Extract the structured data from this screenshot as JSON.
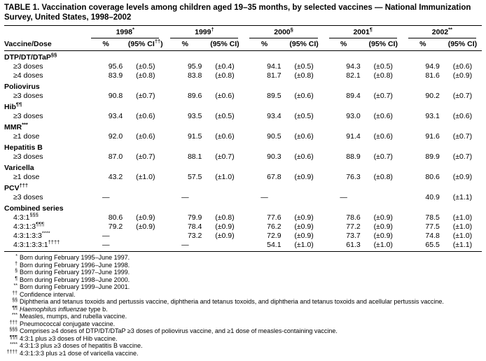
{
  "title": {
    "text": "TABLE 1. Vaccination coverage levels among children aged 19–35 months, by selected vaccines — National Immunization Survey, United States, 1998–2002"
  },
  "table": {
    "corner_label": "Vaccine/Dose",
    "years": [
      {
        "label": "1998",
        "marker": "*",
        "pct_label": "%",
        "ci_prefix": "(95% CI",
        "ci_marker": "††",
        "ci_suffix": ")"
      },
      {
        "label": "1999",
        "marker": "†",
        "pct_label": "%",
        "ci_prefix": "(95% CI",
        "ci_marker": "",
        "ci_suffix": ")"
      },
      {
        "label": "2000",
        "marker": "§",
        "pct_label": "%",
        "ci_prefix": "(95% CI",
        "ci_marker": "",
        "ci_suffix": ")"
      },
      {
        "label": "2001",
        "marker": "¶",
        "pct_label": "%",
        "ci_prefix": "(95% CI",
        "ci_marker": "",
        "ci_suffix": ")"
      },
      {
        "label": "2002",
        "marker": "**",
        "pct_label": "%",
        "ci_prefix": "(95% CI",
        "ci_marker": "",
        "ci_suffix": ")"
      }
    ],
    "sections": [
      {
        "name": "DTP/DT/DTaP",
        "marker": "§§",
        "rows": [
          {
            "label": "≥3 doses",
            "marker": "",
            "values": [
              {
                "pct": "95.6",
                "ci": "(±0.5)"
              },
              {
                "pct": "95.9",
                "ci": "(±0.4)"
              },
              {
                "pct": "94.1",
                "ci": "(±0.5)"
              },
              {
                "pct": "94.3",
                "ci": "(±0.5)"
              },
              {
                "pct": "94.9",
                "ci": "(±0.6)"
              }
            ]
          },
          {
            "label": "≥4 doses",
            "marker": "",
            "values": [
              {
                "pct": "83.9",
                "ci": "(±0.8)"
              },
              {
                "pct": "83.8",
                "ci": "(±0.8)"
              },
              {
                "pct": "81.7",
                "ci": "(±0.8)"
              },
              {
                "pct": "82.1",
                "ci": "(±0.8)"
              },
              {
                "pct": "81.6",
                "ci": "(±0.9)"
              }
            ]
          }
        ]
      },
      {
        "name": "Poliovirus",
        "marker": "",
        "rows": [
          {
            "label": "≥3 doses",
            "marker": "",
            "values": [
              {
                "pct": "90.8",
                "ci": "(±0.7)"
              },
              {
                "pct": "89.6",
                "ci": "(±0.6)"
              },
              {
                "pct": "89.5",
                "ci": "(±0.6)"
              },
              {
                "pct": "89.4",
                "ci": "(±0.7)"
              },
              {
                "pct": "90.2",
                "ci": "(±0.7)"
              }
            ]
          }
        ]
      },
      {
        "name": "Hib",
        "marker": "¶¶",
        "rows": [
          {
            "label": "≥3 doses",
            "marker": "",
            "values": [
              {
                "pct": "93.4",
                "ci": "(±0.6)"
              },
              {
                "pct": "93.5",
                "ci": "(±0.5)"
              },
              {
                "pct": "93.4",
                "ci": "(±0.5)"
              },
              {
                "pct": "93.0",
                "ci": "(±0.6)"
              },
              {
                "pct": "93.1",
                "ci": "(±0.6)"
              }
            ]
          }
        ]
      },
      {
        "name": "MMR",
        "marker": "***",
        "rows": [
          {
            "label": "≥1 dose",
            "marker": "",
            "values": [
              {
                "pct": "92.0",
                "ci": "(±0.6)"
              },
              {
                "pct": "91.5",
                "ci": "(±0.6)"
              },
              {
                "pct": "90.5",
                "ci": "(±0.6)"
              },
              {
                "pct": "91.4",
                "ci": "(±0.6)"
              },
              {
                "pct": "91.6",
                "ci": "(±0.7)"
              }
            ]
          }
        ]
      },
      {
        "name": "Hepatitis B",
        "marker": "",
        "rows": [
          {
            "label": "≥3 doses",
            "marker": "",
            "values": [
              {
                "pct": "87.0",
                "ci": "(±0.7)"
              },
              {
                "pct": "88.1",
                "ci": "(±0.7)"
              },
              {
                "pct": "90.3",
                "ci": "(±0.6)"
              },
              {
                "pct": "88.9",
                "ci": "(±0.7)"
              },
              {
                "pct": "89.9",
                "ci": "(±0.7)"
              }
            ]
          }
        ]
      },
      {
        "name": "Varicella",
        "marker": "",
        "rows": [
          {
            "label": "≥1 dose",
            "marker": "",
            "values": [
              {
                "pct": "43.2",
                "ci": "(±1.0)"
              },
              {
                "pct": "57.5",
                "ci": "(±1.0)"
              },
              {
                "pct": "67.8",
                "ci": "(±0.9)"
              },
              {
                "pct": "76.3",
                "ci": "(±0.8)"
              },
              {
                "pct": "80.6",
                "ci": "(±0.9)"
              }
            ]
          }
        ]
      },
      {
        "name": "PCV",
        "marker": "†††",
        "rows": [
          {
            "label": "≥3 doses",
            "marker": "",
            "values": [
              {
                "pct": "—",
                "ci": ""
              },
              {
                "pct": "—",
                "ci": ""
              },
              {
                "pct": "—",
                "ci": ""
              },
              {
                "pct": "—",
                "ci": ""
              },
              {
                "pct": "40.9",
                "ci": "(±1.1)"
              }
            ]
          }
        ]
      },
      {
        "name": "Combined series",
        "marker": "",
        "rows": [
          {
            "label": "4:3:1",
            "marker": "§§§",
            "values": [
              {
                "pct": "80.6",
                "ci": "(±0.9)"
              },
              {
                "pct": "79.9",
                "ci": "(±0.8)"
              },
              {
                "pct": "77.6",
                "ci": "(±0.9)"
              },
              {
                "pct": "78.6",
                "ci": "(±0.9)"
              },
              {
                "pct": "78.5",
                "ci": "(±1.0)"
              }
            ]
          },
          {
            "label": "4:3:1:3",
            "marker": "¶¶¶",
            "values": [
              {
                "pct": "79.2",
                "ci": "(±0.9)"
              },
              {
                "pct": "78.4",
                "ci": "(±0.9)"
              },
              {
                "pct": "76.2",
                "ci": "(±0.9)"
              },
              {
                "pct": "77.2",
                "ci": "(±0.9)"
              },
              {
                "pct": "77.5",
                "ci": "(±1.0)"
              }
            ]
          },
          {
            "label": "4:3:1:3:3",
            "marker": "****",
            "values": [
              {
                "pct": "—",
                "ci": ""
              },
              {
                "pct": "73.2",
                "ci": "(±0.9)"
              },
              {
                "pct": "72.9",
                "ci": "(±0.9)"
              },
              {
                "pct": "73.7",
                "ci": "(±0.9)"
              },
              {
                "pct": "74.8",
                "ci": "(±1.0)"
              }
            ]
          },
          {
            "label": "4:3:1:3:3:1",
            "marker": "††††",
            "values": [
              {
                "pct": "—",
                "ci": ""
              },
              {
                "pct": "—",
                "ci": ""
              },
              {
                "pct": "54.1",
                "ci": "(±1.0)"
              },
              {
                "pct": "61.3",
                "ci": "(±1.0)"
              },
              {
                "pct": "65.5",
                "ci": "(±1.1)"
              }
            ]
          }
        ]
      }
    ]
  },
  "footnotes": [
    {
      "marker": "*",
      "parts": [
        {
          "t": "Born during February 1995–June 1997.",
          "i": false
        }
      ]
    },
    {
      "marker": "†",
      "parts": [
        {
          "t": "Born during February 1996–June 1998.",
          "i": false
        }
      ]
    },
    {
      "marker": "§",
      "parts": [
        {
          "t": "Born during February 1997–June 1999.",
          "i": false
        }
      ]
    },
    {
      "marker": "¶",
      "parts": [
        {
          "t": "Born during February 1998–June 2000.",
          "i": false
        }
      ]
    },
    {
      "marker": "**",
      "parts": [
        {
          "t": "Born during February 1999–June 2001.",
          "i": false
        }
      ]
    },
    {
      "marker": "††",
      "parts": [
        {
          "t": "Confidence interval.",
          "i": false
        }
      ]
    },
    {
      "marker": "§§",
      "parts": [
        {
          "t": "Diphtheria and tetanus toxoids and pertussis vaccine, diphtheria and tetanus toxoids, and diphtheria and tetanus toxoids and acellular pertussis vaccine.",
          "i": false
        }
      ]
    },
    {
      "marker": "¶¶",
      "parts": [
        {
          "t": "Haemophilus influenzae",
          "i": true
        },
        {
          "t": " type b.",
          "i": false
        }
      ]
    },
    {
      "marker": "***",
      "parts": [
        {
          "t": "Measles, mumps, and rubella vaccine.",
          "i": false
        }
      ]
    },
    {
      "marker": "†††",
      "parts": [
        {
          "t": "Pneumococcal conjugate vaccine.",
          "i": false
        }
      ]
    },
    {
      "marker": "§§§",
      "parts": [
        {
          "t": "Comprises ≥4 doses of DTP/DT/DTaP ≥3 doses of poliovirus vaccine, and ≥1 dose of measles-containing vaccine.",
          "i": false
        }
      ]
    },
    {
      "marker": "¶¶¶",
      "parts": [
        {
          "t": "4:3:1 plus ≥3 doses of Hib vaccine.",
          "i": false
        }
      ]
    },
    {
      "marker": "****",
      "parts": [
        {
          "t": "4:3:1:3 plus ≥3 doses of hepatitis B vaccine.",
          "i": false
        }
      ]
    },
    {
      "marker": "††††",
      "parts": [
        {
          "t": "4:3:1:3:3 plus ≥1 dose of varicella vaccine.",
          "i": false
        }
      ]
    }
  ]
}
